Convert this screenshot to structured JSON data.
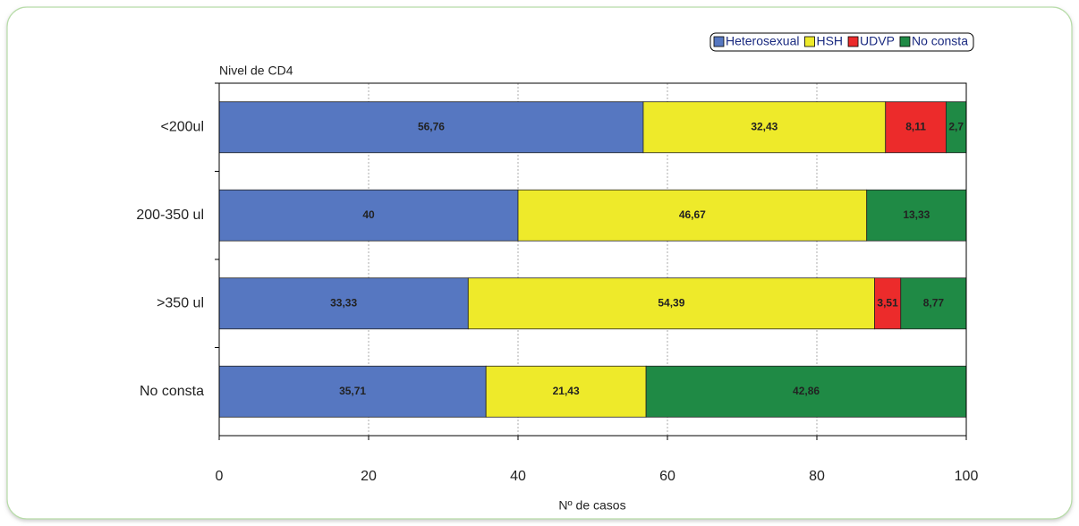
{
  "chart_data": {
    "type": "stacked-bar-horizontal",
    "ylabel": "Nivel de CD4",
    "xlabel": "Nº de casos",
    "categories": [
      "<200ul",
      "200-350 ul",
      ">350 ul",
      "No consta"
    ],
    "series": [
      {
        "name": "Heterosexual",
        "color": "#5677c1",
        "values": [
          56.76,
          40,
          33.33,
          35.71
        ],
        "value_labels": [
          "56,76",
          "40",
          "33,33",
          "35,71"
        ]
      },
      {
        "name": "HSH",
        "color": "#eeea2a",
        "values": [
          32.43,
          46.67,
          54.39,
          21.43
        ],
        "value_labels": [
          "32,43",
          "46,67",
          "54,39",
          "21,43"
        ]
      },
      {
        "name": "UDVP",
        "color": "#ec2b2b",
        "values": [
          8.11,
          null,
          3.51,
          null
        ],
        "value_labels": [
          "8,11",
          null,
          "3,51",
          null
        ]
      },
      {
        "name": "No consta",
        "color": "#1f8a45",
        "values": [
          2.7,
          13.33,
          8.77,
          42.86
        ],
        "value_labels": [
          "2,7",
          "13,33",
          "8,77",
          "42,86"
        ]
      }
    ],
    "xlim": [
      0,
      100
    ],
    "xticks": [
      0,
      20,
      40,
      60,
      80,
      100
    ],
    "grid": true,
    "legend": "top-right"
  }
}
